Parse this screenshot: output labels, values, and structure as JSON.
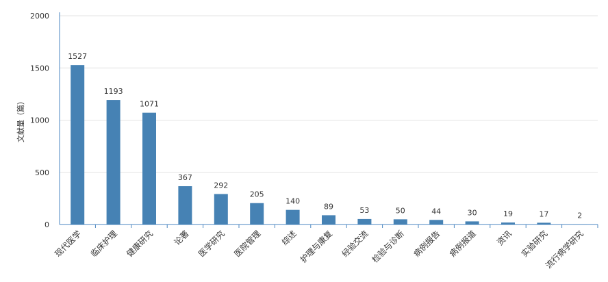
{
  "chart_data": {
    "type": "bar",
    "y_label": "文献量（篇）",
    "categories": [
      "现代医学",
      "临床护理",
      "健康研究",
      "论著",
      "医学研究",
      "医院管理",
      "综述",
      "护理与康复",
      "经验交流",
      "检验与诊断",
      "病例报告",
      "病例报道",
      "资讯",
      "实验研究",
      "流行病学研究"
    ],
    "values": [
      1527,
      1193,
      1071,
      367,
      292,
      205,
      140,
      89,
      53,
      50,
      44,
      30,
      19,
      17,
      2
    ],
    "color": "#4682b4",
    "ylim": [
      0,
      2000
    ],
    "yticks": [
      0,
      500,
      1000,
      1500,
      2000
    ],
    "grid": true
  }
}
